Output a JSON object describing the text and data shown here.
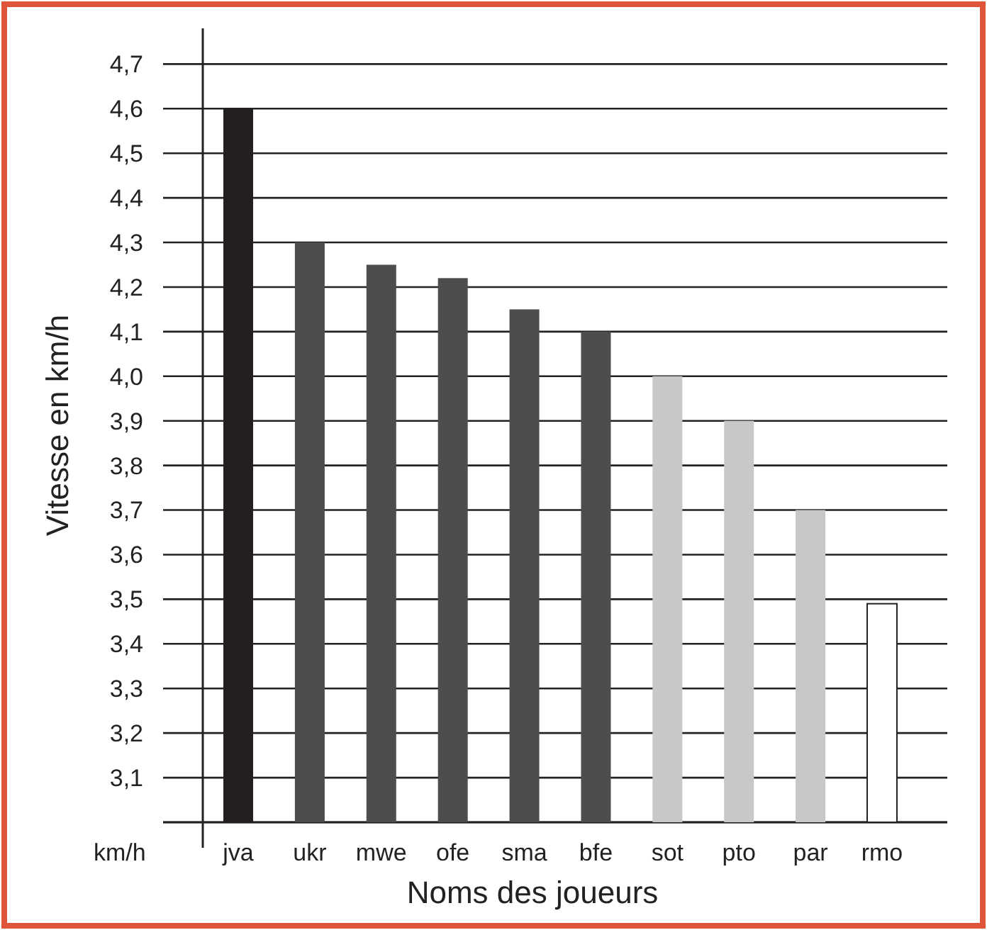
{
  "chart_data": {
    "type": "bar",
    "ylabel": "Vitesse en km/h",
    "xlabel": "Noms des joueurs",
    "categories": [
      "jva",
      "ukr",
      "mwe",
      "ofe",
      "sma",
      "bfe",
      "sot",
      "pto",
      "par",
      "rmo"
    ],
    "values": [
      4.6,
      4.3,
      4.25,
      4.22,
      4.15,
      4.1,
      4.0,
      3.9,
      3.7,
      3.49
    ],
    "colors": [
      "#231f20",
      "#4d4d4d",
      "#4d4d4d",
      "#4d4d4d",
      "#4d4d4d",
      "#4d4d4d",
      "#c8c8c8",
      "#c8c8c8",
      "#c8c8c8",
      "#ffffff"
    ],
    "ylim": [
      3.0,
      4.78
    ],
    "yticks": [
      {
        "value": 3.0,
        "label": null
      },
      {
        "value": 3.1,
        "label": "3,1"
      },
      {
        "value": 3.2,
        "label": "3,2"
      },
      {
        "value": 3.3,
        "label": "3,3"
      },
      {
        "value": 3.4,
        "label": "3,4"
      },
      {
        "value": 3.5,
        "label": "3,5"
      },
      {
        "value": 3.6,
        "label": "3,6"
      },
      {
        "value": 3.7,
        "label": "3,7"
      },
      {
        "value": 3.8,
        "label": "3,8"
      },
      {
        "value": 3.9,
        "label": "3,9"
      },
      {
        "value": 4.0,
        "label": "4,0"
      },
      {
        "value": 4.1,
        "label": "4,1"
      },
      {
        "value": 4.2,
        "label": "4,2"
      },
      {
        "value": 4.3,
        "label": "4,3"
      },
      {
        "value": 4.4,
        "label": "4,4"
      },
      {
        "value": 4.5,
        "label": "4,5"
      },
      {
        "value": 4.6,
        "label": "4,6"
      },
      {
        "value": 4.7,
        "label": "4,7"
      }
    ],
    "grid": "y",
    "annotations": [
      "km/h"
    ]
  }
}
